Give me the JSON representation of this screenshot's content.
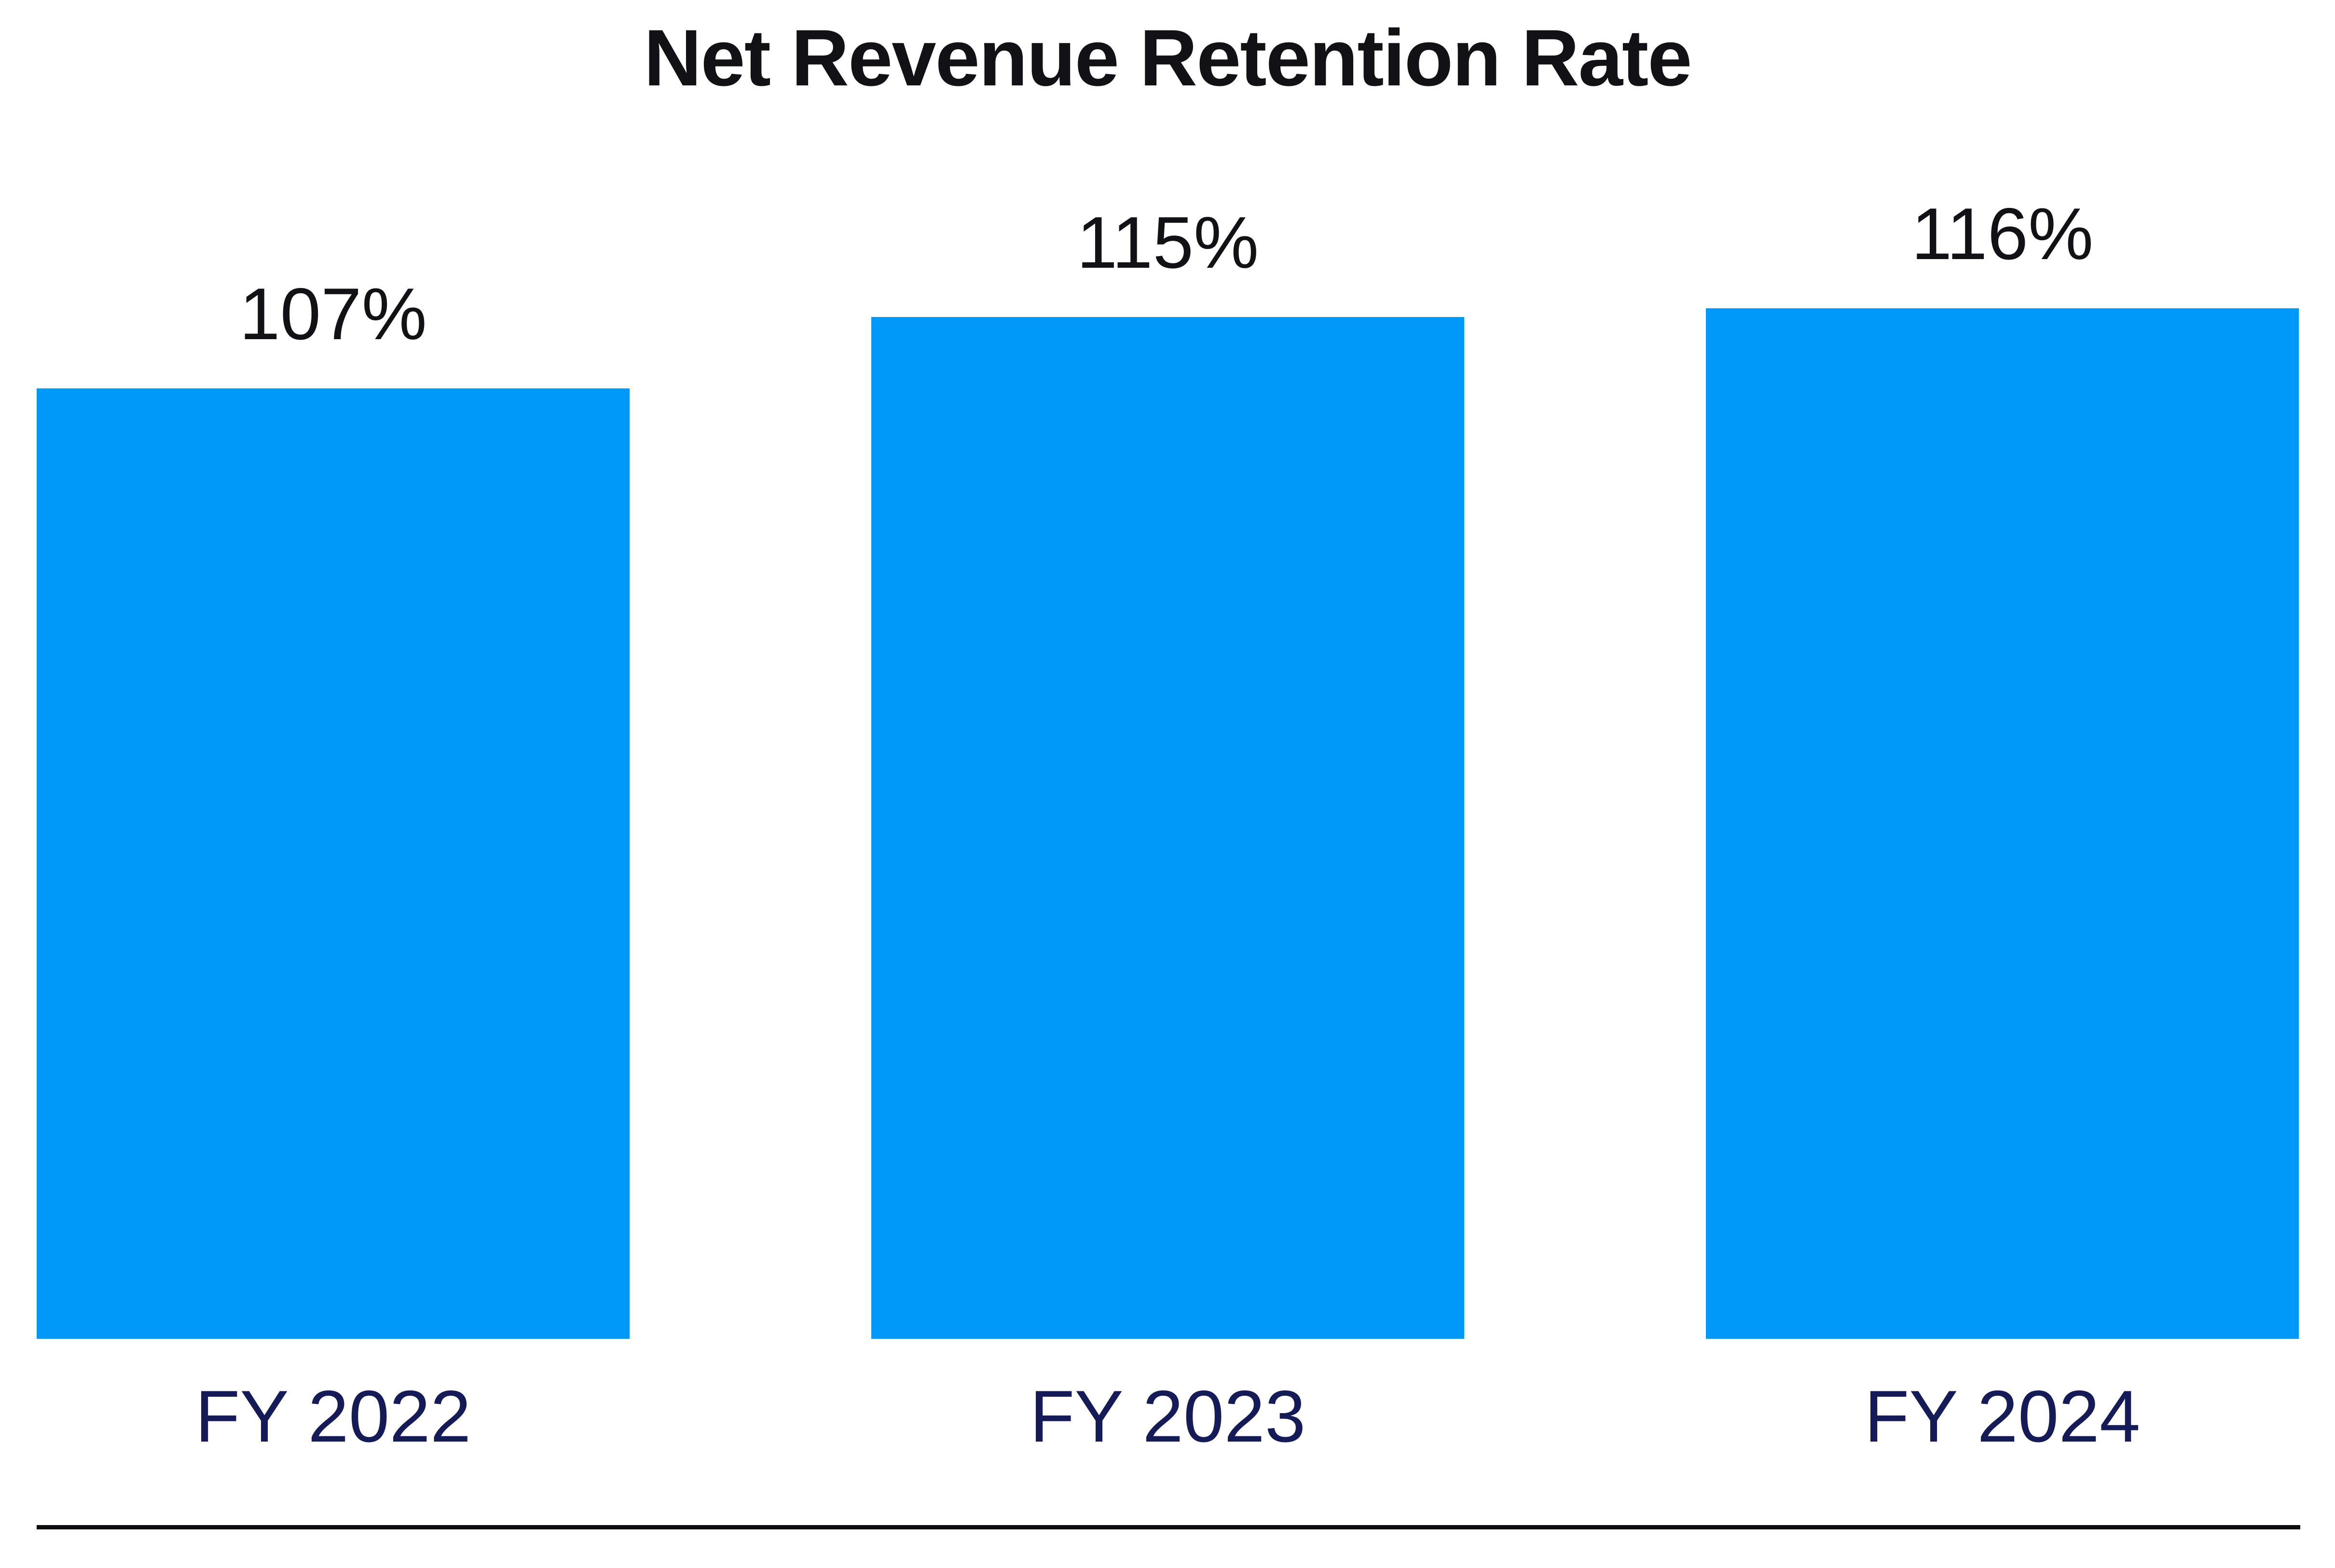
{
  "chart_data": {
    "type": "bar",
    "title": "Net Revenue Retention Rate",
    "categories": [
      "FY 2022",
      "FY 2023",
      "FY 2024"
    ],
    "values": [
      107,
      115,
      116
    ],
    "unit": "%",
    "data_labels": [
      "107%",
      "115%",
      "116%"
    ],
    "ylim": [
      0,
      116
    ],
    "baseline": 0,
    "grid": false,
    "legend": false,
    "xlabel": "",
    "ylabel": "",
    "colors": {
      "bar": "#0099FA",
      "title_text": "#111116",
      "value_label_text": "#111116",
      "category_label_text": "#151B57",
      "axis_rule": "#0C0E13",
      "background": "#FFFFFF"
    }
  }
}
